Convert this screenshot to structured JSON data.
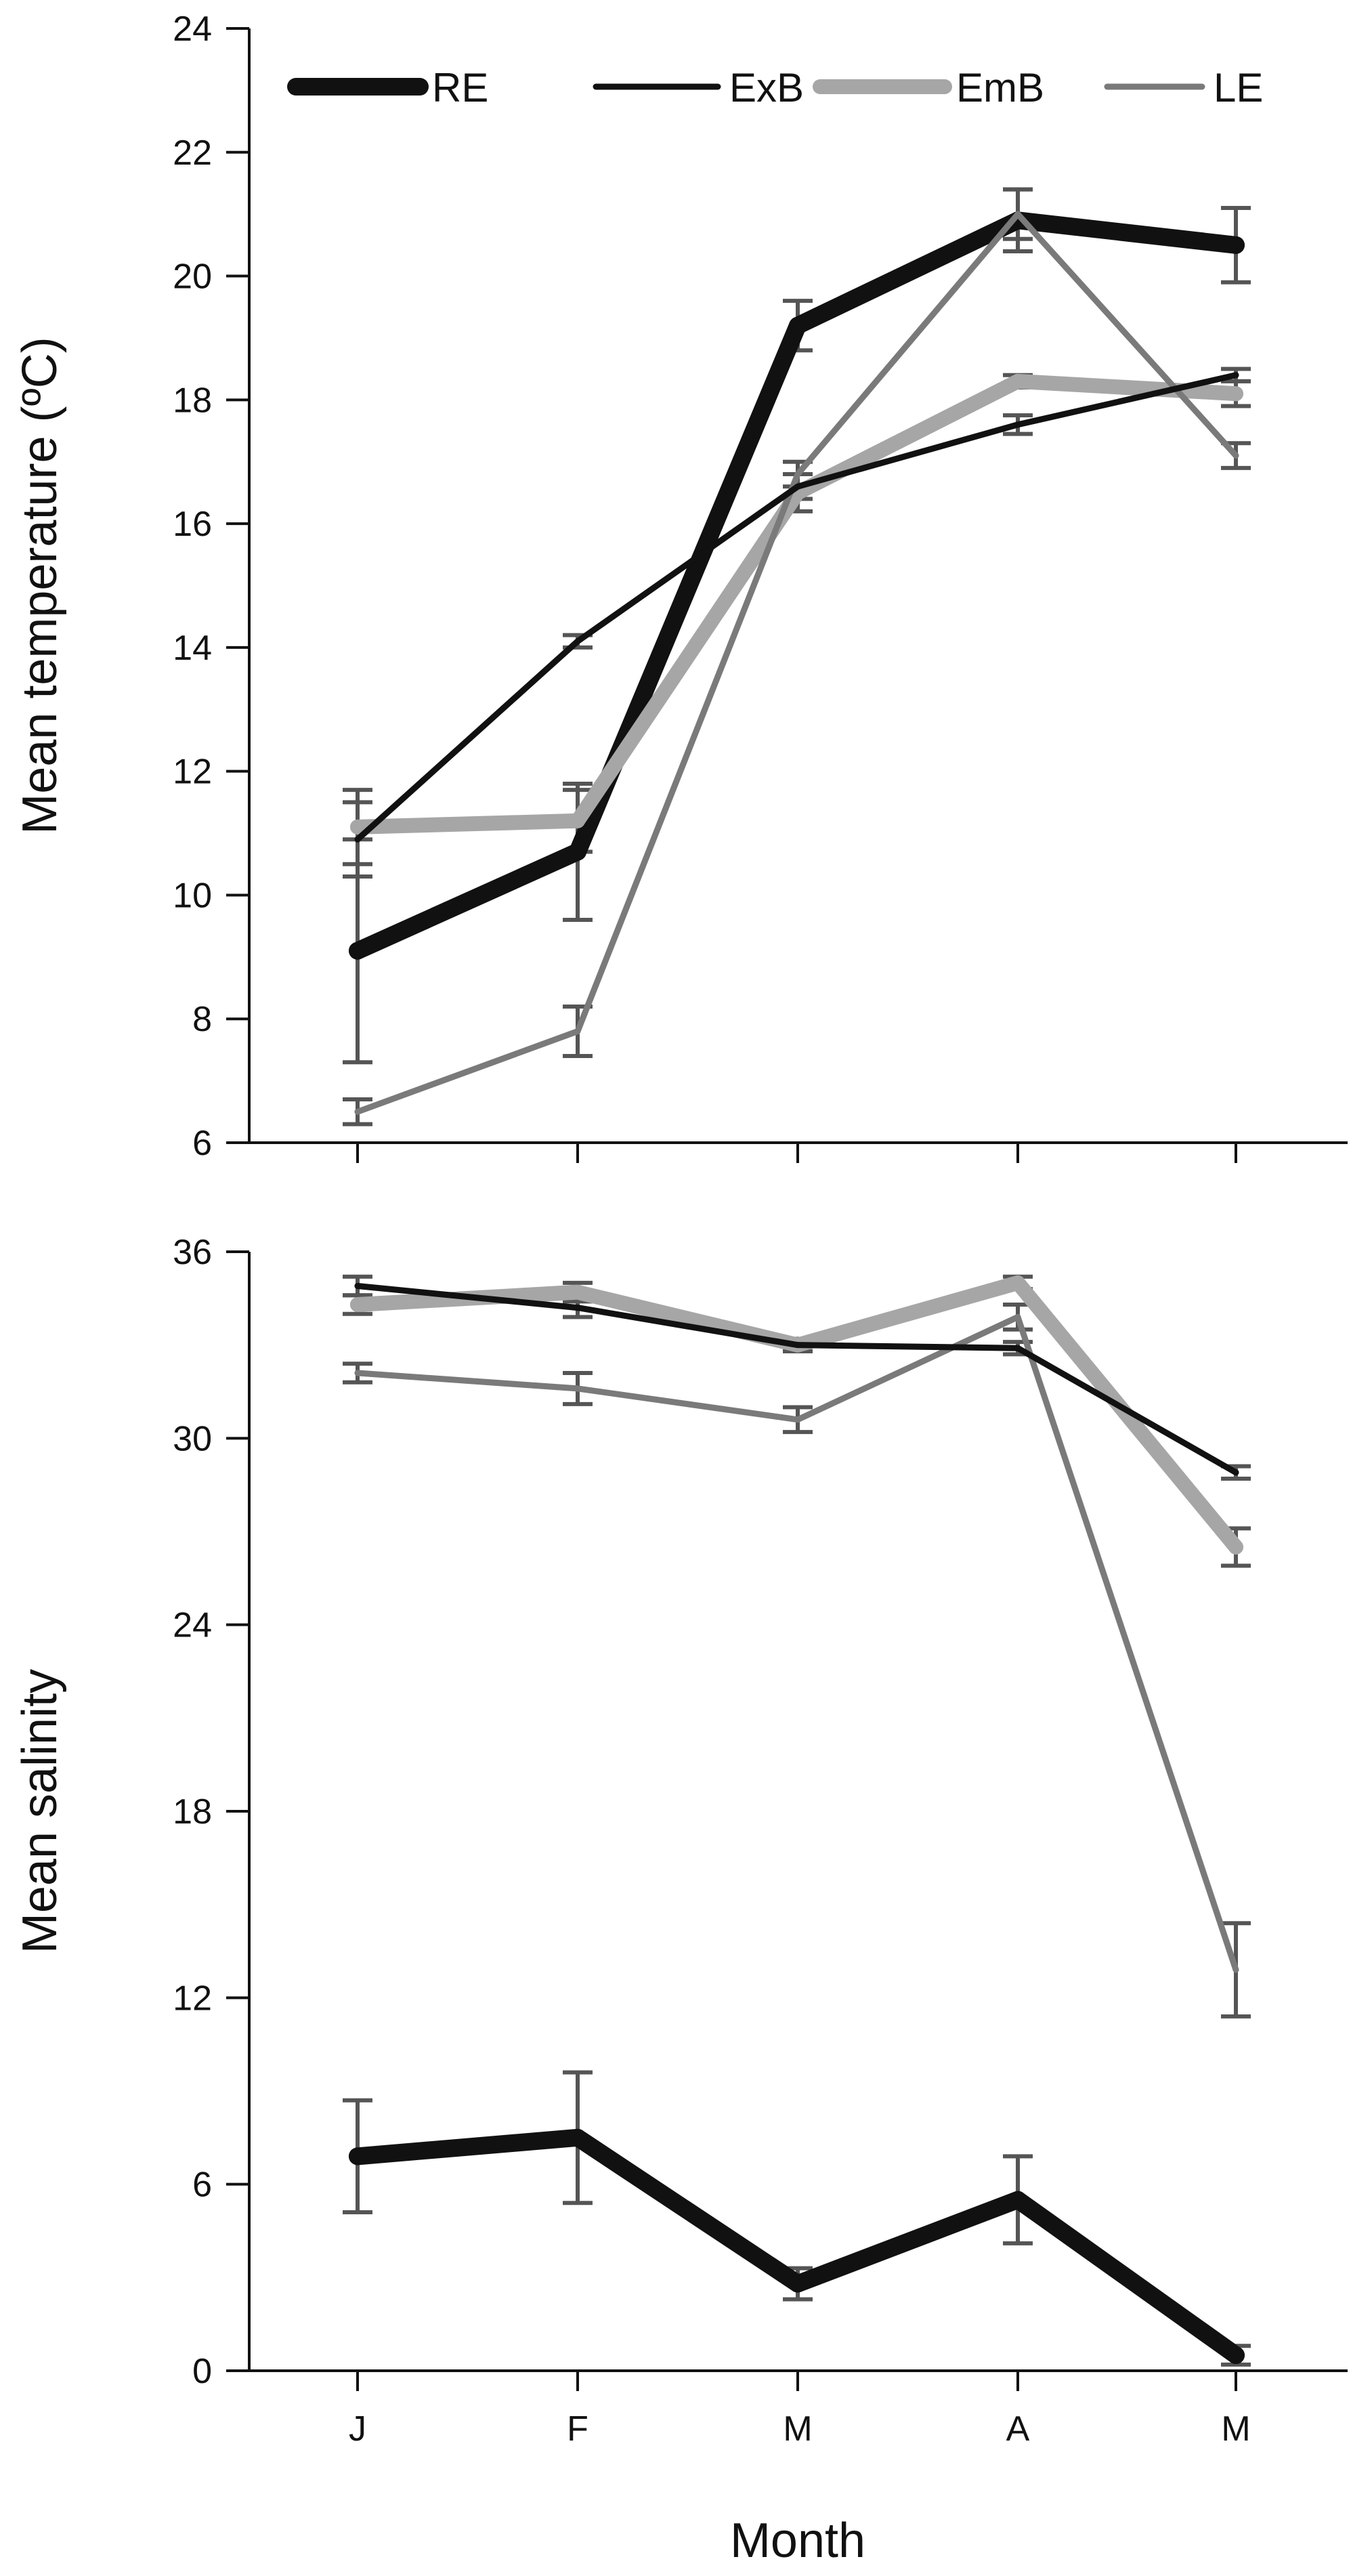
{
  "chart_data": [
    {
      "type": "line",
      "panel": "top",
      "xlabel": "",
      "ylabel": "Mean temperature (ºC)",
      "categories": [
        "J",
        "F",
        "M",
        "A",
        "M"
      ],
      "ylim": [
        6,
        24
      ],
      "yticks": [
        6,
        8,
        10,
        12,
        14,
        16,
        18,
        20,
        22,
        24
      ],
      "grid": false,
      "legend": "top",
      "series": [
        {
          "name": "RE",
          "color": "#111111",
          "values": [
            9.1,
            10.7,
            19.2,
            20.9,
            20.5
          ],
          "errors": [
            1.8,
            1.1,
            0.4,
            0.5,
            0.6
          ]
        },
        {
          "name": "ExB",
          "color": "#111111",
          "values": [
            10.9,
            14.1,
            16.6,
            17.6,
            18.4
          ],
          "errors": [
            0.6,
            0.1,
            0.2,
            0.15,
            0.1
          ]
        },
        {
          "name": "EmB",
          "color": "#a6a6a6",
          "values": [
            11.1,
            11.2,
            16.5,
            18.3,
            18.1
          ],
          "errors": [
            0.6,
            0.5,
            0.3,
            0.1,
            0.2
          ]
        },
        {
          "name": "LE",
          "color": "#7a7a7a",
          "values": [
            6.5,
            7.8,
            16.8,
            21.0,
            17.1
          ],
          "errors": [
            0.2,
            0.4,
            0.2,
            0.4,
            0.2
          ]
        }
      ]
    },
    {
      "type": "line",
      "panel": "bottom",
      "xlabel": "Month",
      "ylabel": "Mean salinity",
      "categories": [
        "J",
        "F",
        "M",
        "A",
        "M"
      ],
      "ylim": [
        0,
        36
      ],
      "yticks": [
        0,
        6,
        12,
        18,
        24,
        30,
        36
      ],
      "grid": false,
      "series": [
        {
          "name": "RE",
          "values": [
            6.9,
            7.5,
            2.8,
            5.5,
            0.5
          ],
          "errors": [
            1.8,
            2.1,
            0.5,
            1.4,
            0.3
          ]
        },
        {
          "name": "ExB",
          "values": [
            34.9,
            34.2,
            33.0,
            32.9,
            28.9
          ],
          "errors": [
            0.3,
            0.3,
            0.2,
            0.2,
            0.2
          ]
        },
        {
          "name": "EmB",
          "values": [
            34.3,
            34.7,
            33.0,
            35.0,
            26.5
          ],
          "errors": [
            0.3,
            0.3,
            0.2,
            0.2,
            0.6
          ]
        },
        {
          "name": "LE",
          "values": [
            32.1,
            31.6,
            30.6,
            33.9,
            12.9
          ],
          "errors": [
            0.3,
            0.5,
            0.4,
            0.4,
            1.5
          ]
        }
      ]
    }
  ]
}
